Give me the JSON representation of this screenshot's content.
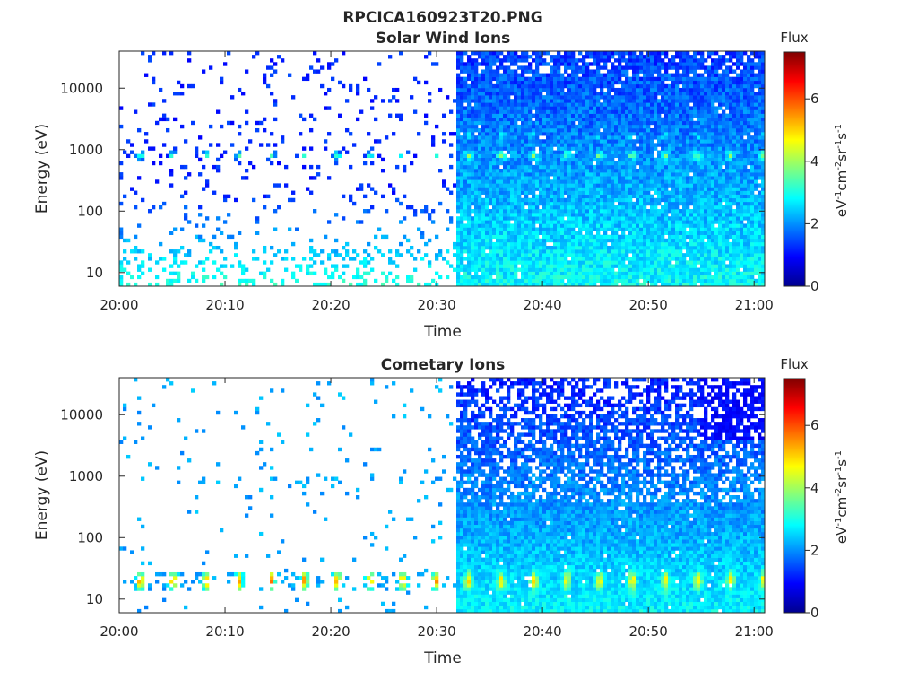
{
  "figure_title": "RPCICA160923T20.PNG",
  "colors": {
    "axis": "#262626",
    "background": "#ffffff",
    "colormap": "jet"
  },
  "chart_data": [
    {
      "type": "heatmap",
      "title": "Solar Wind Ions",
      "xlabel": "Time",
      "ylabel": "Energy (eV)",
      "x_ticks": [
        "20:00",
        "20:10",
        "20:20",
        "20:30",
        "20:40",
        "20:50",
        "21:00"
      ],
      "x_range": [
        "20:00",
        "21:01"
      ],
      "y_scale": "log",
      "y_ticks": [
        10,
        100,
        1000,
        10000
      ],
      "y_tick_labels": [
        "10",
        "100",
        "1000",
        "10000"
      ],
      "y_range": [
        6,
        40000
      ],
      "colorbar": {
        "label": "Flux",
        "unit_label": "eV-1cm-2sr-1s-1",
        "range": [
          0,
          7.5
        ],
        "ticks": [
          "0",
          "2",
          "4",
          "6"
        ]
      },
      "regime_change_time": "20:32",
      "peak_energy_eV": 800
    },
    {
      "type": "heatmap",
      "title": "Cometary Ions",
      "xlabel": "Time",
      "ylabel": "Energy (eV)",
      "x_ticks": [
        "20:00",
        "20:10",
        "20:20",
        "20:30",
        "20:40",
        "20:50",
        "21:00"
      ],
      "x_range": [
        "20:00",
        "21:01"
      ],
      "y_scale": "log",
      "y_ticks": [
        10,
        100,
        1000,
        10000
      ],
      "y_tick_labels": [
        "10",
        "100",
        "1000",
        "10000"
      ],
      "y_range": [
        6,
        40000
      ],
      "colorbar": {
        "label": "Flux",
        "unit_label": "eV-1cm-2sr-1s-1",
        "range": [
          0,
          7.5
        ],
        "ticks": [
          "0",
          "2",
          "4",
          "6"
        ]
      },
      "regime_change_time": "20:32",
      "peak_energy_eV": 20
    }
  ]
}
